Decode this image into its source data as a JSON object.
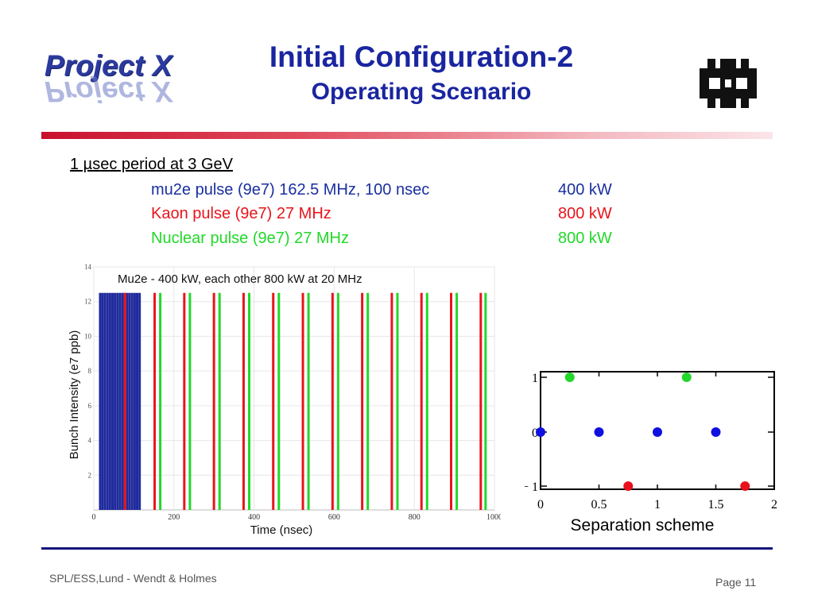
{
  "header": {
    "logo_text": "Project X",
    "title": "Initial Configuration-2",
    "subtitle": "Operating Scenario"
  },
  "body": {
    "heading": "1 µsec period at 3 GeV",
    "rows": [
      {
        "label": "mu2e pulse (9e7) 162.5 MHz, 100 nsec",
        "value": "400 kW",
        "color": "#1a2fa0"
      },
      {
        "label": "Kaon pulse (9e7) 27 MHz",
        "value": "800 kW",
        "color": "#e8141b"
      },
      {
        "label": "Nuclear pulse (9e7) 27 MHz",
        "value": "800 kW",
        "color": "#22d82a"
      }
    ]
  },
  "footer": {
    "left": "SPL/ESS,Lund - Wendt & Holmes",
    "right": "Page 11"
  },
  "chart_data": [
    {
      "type": "bar",
      "title": "Mu2e - 400 kW, each other 800 kW at 20 MHz",
      "xlabel": "Time (nsec)",
      "ylabel": "Bunch Intensity (e7 ppb)",
      "xlim": [
        0,
        1000
      ],
      "ylim": [
        0,
        14
      ],
      "xticks": [
        0,
        200,
        400,
        600,
        800,
        1000
      ],
      "yticks": [
        2,
        4,
        6,
        8,
        10,
        12,
        14
      ],
      "series": [
        {
          "color": "#1f2a9c",
          "height": 12.5,
          "x": [
            0,
            6.15,
            12.3,
            18.5,
            24.6,
            30.8,
            36.9,
            43.1,
            49.2,
            55.4,
            61.5,
            67.7,
            73.8,
            80.0,
            86.2,
            92.3,
            98.5
          ]
        },
        {
          "color": "#e8141b",
          "height": 12.5,
          "x": [
            62,
            136,
            210,
            284,
            358,
            432,
            506,
            580,
            654,
            728,
            802,
            876,
            950
          ]
        },
        {
          "color": "#22d82a",
          "height": 12.5,
          "x": [
            150,
            224,
            298,
            372,
            446,
            520,
            594,
            668,
            742,
            816,
            890,
            962
          ]
        }
      ]
    },
    {
      "type": "scatter",
      "xlabel": "Separation scheme",
      "xlim": [
        0,
        2
      ],
      "ylim": [
        -1,
        1
      ],
      "xticks": [
        {
          "v": 0,
          "label": "0"
        },
        {
          "v": 0.5,
          "label": "0.5"
        },
        {
          "v": 1,
          "label": "1"
        },
        {
          "v": 1.5,
          "label": "1.5"
        },
        {
          "v": 2,
          "label": "2"
        }
      ],
      "yticks": [
        {
          "v": 1,
          "label": "1"
        },
        {
          "v": 0,
          "label": "0"
        },
        {
          "v": -1,
          "label": "− 1"
        }
      ],
      "series": [
        {
          "color": "#22d82a",
          "points": [
            [
              0.25,
              1
            ],
            [
              1.25,
              1
            ]
          ]
        },
        {
          "color": "#1010e0",
          "points": [
            [
              0,
              0
            ],
            [
              0.5,
              0
            ],
            [
              1,
              0
            ],
            [
              1.5,
              0
            ]
          ]
        },
        {
          "color": "#e8101b",
          "points": [
            [
              0.75,
              -1
            ],
            [
              1.75,
              -1
            ]
          ]
        }
      ]
    }
  ]
}
